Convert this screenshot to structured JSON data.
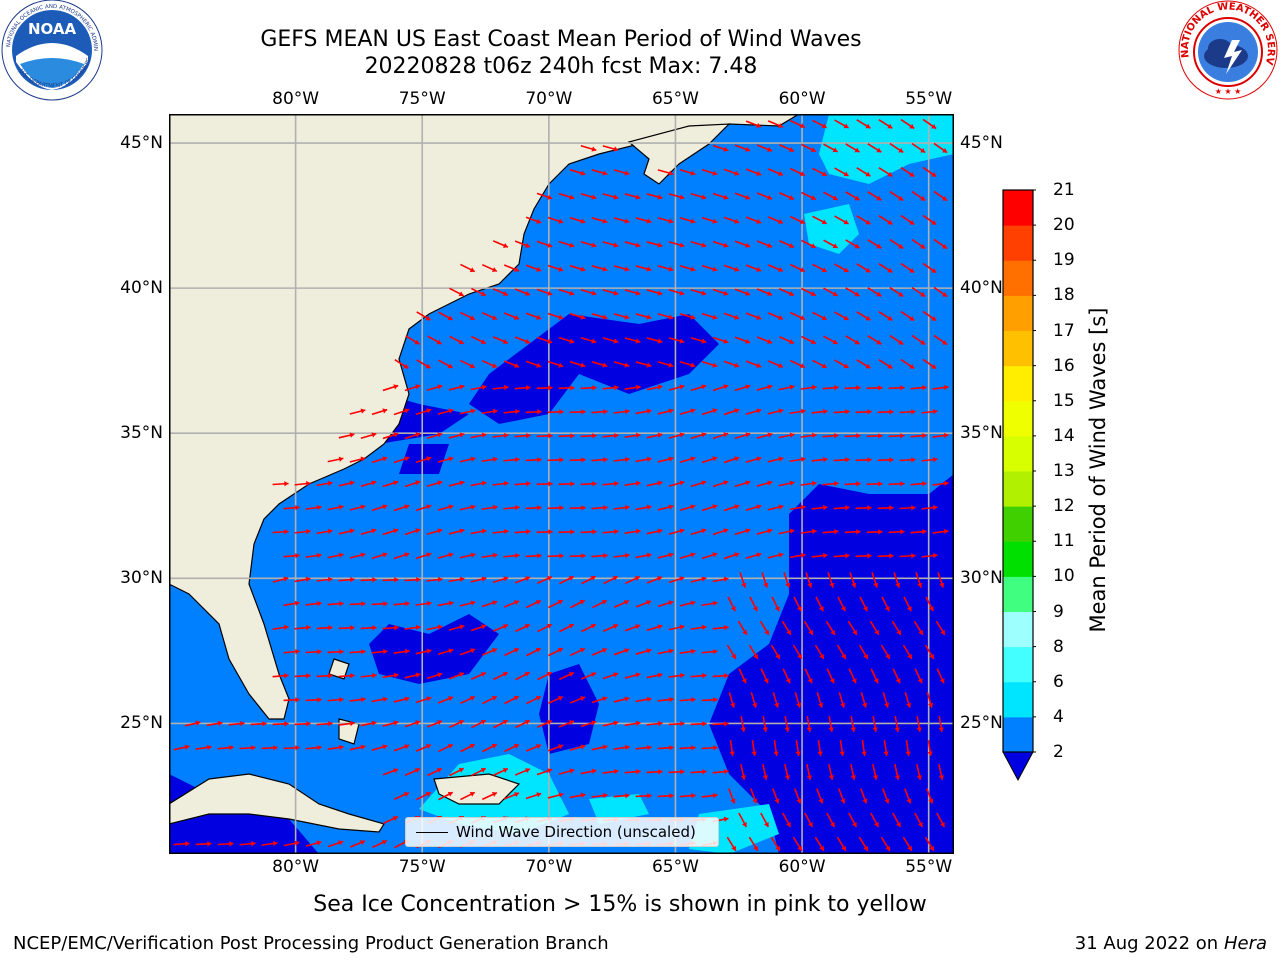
{
  "title": {
    "line1": "GEFS MEAN US East Coast Mean Period of Wind Waves",
    "line2": "20220828 t06z 240h fcst   Max: 7.48"
  },
  "logos": {
    "left": {
      "name": "NOAA",
      "text": "NOAA",
      "ring_text": "NATIONAL OCEANIC AND ATMOSPHERIC ADMINISTRATION · U.S. DEPARTMENT OF COMMERCE"
    },
    "right": {
      "name": "National Weather Service",
      "ring_text": "NATIONAL WEATHER SERVICE"
    }
  },
  "map": {
    "projection": "lat-lon",
    "lon_range": [
      -85,
      -54
    ],
    "lat_range": [
      20.5,
      46
    ],
    "lon_ticks": [
      "80°W",
      "75°W",
      "70°W",
      "65°W",
      "60°W",
      "55°W"
    ],
    "lat_ticks": [
      "45°N",
      "40°N",
      "35°N",
      "30°N",
      "25°N"
    ],
    "land_color": "#efeedc",
    "grid_color": "#b0b0b0",
    "vector_color": "#ff0000",
    "legend_label": "Wind Wave Direction (unscaled)"
  },
  "colorbar": {
    "label": "Mean Period of Wind Waves [s]",
    "ticks": [
      "2",
      "4",
      "6",
      "8",
      "9",
      "10",
      "11",
      "12",
      "13",
      "14",
      "15",
      "16",
      "17",
      "18",
      "19",
      "20",
      "21"
    ],
    "bins": [
      {
        "range": "2-4",
        "color": "#0080ff"
      },
      {
        "range": "4-6",
        "color": "#00e5ff"
      },
      {
        "range": "6-8",
        "color": "#44ffff"
      },
      {
        "range": "8-9",
        "color": "#9effff"
      },
      {
        "range": "9-10",
        "color": "#40ff80"
      },
      {
        "range": "10-11",
        "color": "#00e000"
      },
      {
        "range": "11-12",
        "color": "#40d000"
      },
      {
        "range": "12-13",
        "color": "#b0f000"
      },
      {
        "range": "13-14",
        "color": "#d8ff00"
      },
      {
        "range": "14-15",
        "color": "#f0ff00"
      },
      {
        "range": "15-16",
        "color": "#ffee00"
      },
      {
        "range": "16-17",
        "color": "#ffc000"
      },
      {
        "range": "17-18",
        "color": "#ffa000"
      },
      {
        "range": "18-19",
        "color": "#ff7000"
      },
      {
        "range": "19-20",
        "color": "#ff4000"
      },
      {
        "range": "20-21",
        "color": "#ff0000"
      }
    ],
    "under_color": "#0000e0"
  },
  "subtitle": "Sea Ice Concentration > 15% is shown in pink to yellow",
  "footer": {
    "left": "NCEP/EMC/Verification Post Processing Product Generation Branch",
    "right_date": "31 Aug 2022 on",
    "right_host": "Hera"
  }
}
